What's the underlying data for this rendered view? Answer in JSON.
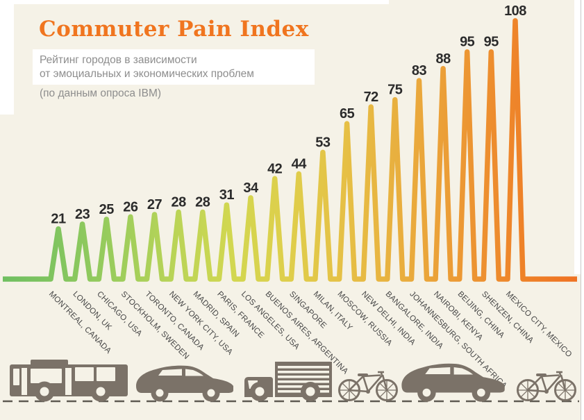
{
  "page": {
    "background_color": "#f5f2e7",
    "margin_color": "#ffffff",
    "right_border_line_color": "#c8c8c8"
  },
  "header": {
    "title": "Commuter Pain Index",
    "title_color": "#f0751f",
    "subtitle_lines": [
      "Рейтинг городов в зависимости",
      "от эмоциальных и экономических проблем",
      "(по данным опроса IBM)"
    ],
    "subtitle_color": "#8d8d8d"
  },
  "chart_data": {
    "type": "line",
    "variant": "spike-peak-infographic",
    "title": "Commuter Pain Index",
    "xlabel": "",
    "ylabel": "",
    "ylim": [
      0,
      108
    ],
    "grid": false,
    "legend": "none",
    "categories": [
      "MONTREAL, CANADA",
      "LONDON, UK",
      "CHICAGO, USA",
      "STOCKHOLM, SWEDEN",
      "TORONTO, CANADA",
      "NEW YORK CITY, USA",
      "MADRID, SPAIN",
      "PARIS, FRANCE",
      "LOS ANGELES, USA",
      "BUENOS AIRES, ARGENTINA",
      "SINGAPORE",
      "MILAN, ITALY",
      "MOSCOW, RUSSIA",
      "NEW DELHI, INDIA",
      "BANGALORE, INDIA",
      "JOHANNESBURG, SOUTH AFRICA",
      "NAIROBI, KENYA",
      "BEIJING, CHINA",
      "SHENZEN, CHINA",
      "MEXICO CITY, MEXICO"
    ],
    "values": [
      21,
      23,
      25,
      26,
      27,
      28,
      28,
      31,
      34,
      42,
      44,
      53,
      65,
      72,
      75,
      83,
      88,
      95,
      95,
      108
    ],
    "gradient_colors": [
      "#6fbf60",
      "#82c55f",
      "#9ccd5c",
      "#bad457",
      "#d2d750",
      "#dfce4b",
      "#e6bf45",
      "#e9ad3e",
      "#ec9834",
      "#ee8329",
      "#ef7222"
    ],
    "value_label_color": "#2b2b2b",
    "category_label_color": "#474747"
  },
  "footer": {
    "vehicle_icons": [
      "bus-icon",
      "car-icon",
      "truck-icon",
      "bicycle-icon",
      "car-icon",
      "bicycle-icon"
    ],
    "vehicle_color": "#7b7268",
    "road_line_color": "#5e5a52",
    "road_style": "dashed"
  }
}
